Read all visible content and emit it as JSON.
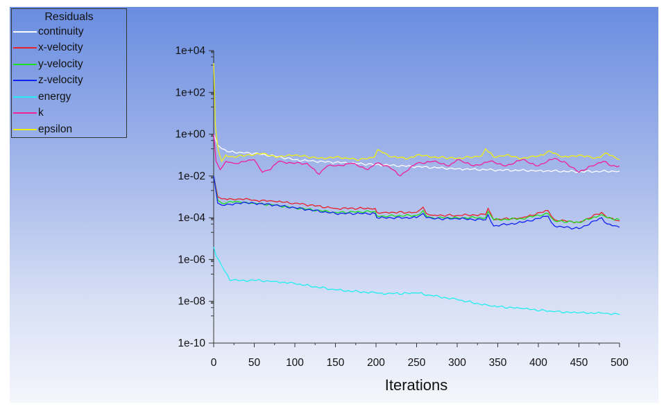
{
  "chart_data": {
    "type": "line",
    "legend_title": "Residuals",
    "legend_position": "top-left",
    "xlabel": "Iterations",
    "ylabel": "",
    "xlim": [
      0,
      500
    ],
    "ylim": [
      1e-10,
      10000.0
    ],
    "yscale": "log",
    "xticks": [
      "0",
      "50",
      "100",
      "150",
      "200",
      "250",
      "300",
      "350",
      "400",
      "450",
      "500"
    ],
    "yticks": [
      "1e+04",
      "1e+02",
      "1e+00",
      "1e-02",
      "1e-04",
      "1e-06",
      "1e-08",
      "1e-10"
    ],
    "series": [
      {
        "name": "continuity",
        "color": "#ffffff",
        "x": [
          0,
          5,
          10,
          20,
          35,
          50,
          75,
          100,
          125,
          150,
          200,
          250,
          300,
          350,
          400,
          450,
          500
        ],
        "y": [
          1,
          0.3,
          0.2,
          0.14,
          0.13,
          0.12,
          0.09,
          0.06,
          0.05,
          0.045,
          0.035,
          0.028,
          0.022,
          0.019,
          0.018,
          0.016,
          0.017
        ]
      },
      {
        "name": "x-velocity",
        "color": "#e8202a",
        "x": [
          0,
          5,
          10,
          30,
          50,
          75,
          100,
          150,
          199,
          201,
          210,
          250,
          258,
          262,
          270,
          300,
          335,
          338,
          345,
          380,
          412,
          416,
          420,
          450,
          478,
          485,
          500
        ],
        "y": [
          0.01,
          0.001,
          0.0008,
          0.0008,
          0.0007,
          0.0006,
          0.0005,
          0.00028,
          0.00028,
          0.00018,
          0.00018,
          0.00018,
          0.00032,
          0.00016,
          0.00013,
          0.00013,
          0.00014,
          0.00028,
          8e-05,
          0.0001,
          0.00022,
          0.00012,
          8e-05,
          6e-05,
          0.00018,
          0.0001,
          7e-05
        ]
      },
      {
        "name": "y-velocity",
        "color": "#1ee01e",
        "x": [
          0,
          5,
          10,
          30,
          50,
          75,
          100,
          150,
          199,
          201,
          210,
          250,
          258,
          262,
          270,
          300,
          335,
          338,
          345,
          380,
          412,
          416,
          420,
          450,
          478,
          485,
          500
        ],
        "y": [
          0.01,
          0.0007,
          0.0005,
          0.0006,
          0.0005,
          0.0004,
          0.0003,
          0.00018,
          0.0002,
          0.00012,
          0.00012,
          0.00013,
          0.00022,
          0.00012,
          0.0001,
          0.0001,
          0.0001,
          0.0002,
          8e-05,
          9e-05,
          0.00016,
          0.0001,
          7e-05,
          6e-05,
          0.00014,
          0.0001,
          8e-05
        ]
      },
      {
        "name": "z-velocity",
        "color": "#1020f0",
        "x": [
          0,
          5,
          10,
          30,
          50,
          75,
          100,
          150,
          199,
          201,
          210,
          250,
          258,
          262,
          270,
          300,
          335,
          338,
          345,
          380,
          412,
          416,
          420,
          450,
          478,
          485,
          500
        ],
        "y": [
          0.01,
          0.0005,
          0.0004,
          0.0005,
          0.0005,
          0.0004,
          0.0003,
          0.00016,
          0.00016,
          0.0001,
          0.0001,
          0.0001,
          0.00016,
          0.0001,
          9e-05,
          9e-05,
          8e-05,
          0.00014,
          4e-05,
          6e-05,
          0.00012,
          6e-05,
          4e-05,
          3e-05,
          0.0001,
          5e-05,
          3.5e-05
        ]
      },
      {
        "name": "energy",
        "color": "#22eef0",
        "x": [
          0,
          3,
          10,
          20,
          30,
          50,
          75,
          100,
          125,
          150,
          200,
          220,
          250,
          265,
          300,
          340,
          380,
          420,
          450,
          480,
          500
        ],
        "y": [
          4e-06,
          1.5e-06,
          5e-07,
          1e-07,
          1e-07,
          1e-07,
          9e-08,
          7e-08,
          5e-08,
          3.5e-08,
          2.5e-08,
          2.3e-08,
          2.5e-08,
          2e-08,
          1.2e-08,
          6e-09,
          4.5e-09,
          3.2e-09,
          2.8e-09,
          2.7e-09,
          2.3e-09
        ]
      },
      {
        "name": "k",
        "color": "#f0209a",
        "x": [
          0,
          3,
          8,
          15,
          25,
          40,
          50,
          60,
          70,
          80,
          100,
          115,
          130,
          140,
          150,
          170,
          190,
          200,
          215,
          230,
          250,
          270,
          290,
          300,
          320,
          340,
          360,
          380,
          400,
          420,
          435,
          450,
          465,
          480,
          490,
          500
        ],
        "y": [
          1,
          0.05,
          0.02,
          0.05,
          0.04,
          0.05,
          0.06,
          0.015,
          0.02,
          0.05,
          0.04,
          0.04,
          0.012,
          0.03,
          0.03,
          0.04,
          0.02,
          0.04,
          0.03,
          0.01,
          0.04,
          0.05,
          0.03,
          0.06,
          0.03,
          0.05,
          0.03,
          0.06,
          0.03,
          0.07,
          0.04,
          0.015,
          0.03,
          0.05,
          0.03,
          0.03
        ]
      },
      {
        "name": "epsilon",
        "color": "#f0f010",
        "x": [
          0,
          1,
          2,
          4,
          6,
          10,
          15,
          25,
          40,
          50,
          60,
          80,
          100,
          130,
          150,
          180,
          198,
          202,
          220,
          240,
          250,
          270,
          300,
          330,
          335,
          345,
          360,
          380,
          400,
          415,
          430,
          450,
          470,
          485,
          500
        ],
        "y": [
          2500,
          100,
          3,
          0.5,
          0.15,
          0.05,
          0.1,
          0.08,
          0.1,
          0.1,
          0.12,
          0.08,
          0.1,
          0.07,
          0.08,
          0.06,
          0.08,
          0.18,
          0.08,
          0.07,
          0.1,
          0.08,
          0.07,
          0.09,
          0.2,
          0.08,
          0.1,
          0.07,
          0.09,
          0.15,
          0.08,
          0.1,
          0.07,
          0.12,
          0.06
        ]
      }
    ]
  }
}
